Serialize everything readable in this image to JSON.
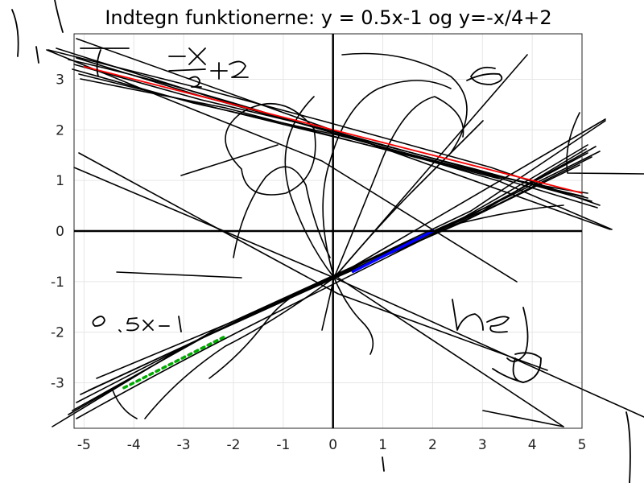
{
  "chart_data": {
    "type": "line",
    "title": "Indtegn funktionerne: y = 0.5x-1 og y=-x/4+2",
    "xlabel": "",
    "ylabel": "",
    "xlim": [
      -5.2,
      5
    ],
    "ylim": [
      -3.9,
      3.9
    ],
    "x_ticks": [
      -5,
      -4,
      -3,
      -2,
      -1,
      0,
      1,
      2,
      3,
      4,
      5
    ],
    "y_ticks": [
      -3,
      -2,
      -1,
      0,
      1,
      2,
      3
    ],
    "grid": true,
    "series": [
      {
        "x": [
          -5,
          5
        ],
        "y": [
          3.25,
          0.75
        ],
        "color": "#ff0000"
      },
      {
        "x": [
          0.4,
          2
        ],
        "y": [
          -0.8,
          0
        ],
        "color": "#0000ff"
      },
      {
        "x": [
          -4.2,
          -2.2
        ],
        "y": [
          -3.1,
          -2.1
        ],
        "color": "#00aa00"
      }
    ],
    "annotations": [
      "-x",
      "4",
      "+2",
      "e",
      "0.5x-1",
      "hej",
      "1"
    ]
  }
}
